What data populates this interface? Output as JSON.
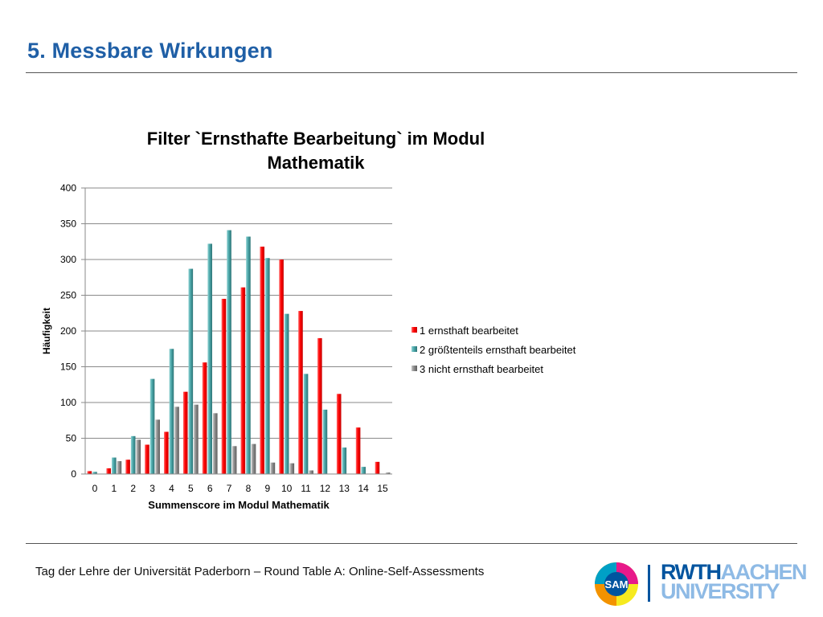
{
  "slide": {
    "title": "5. Messbare Wirkungen",
    "footer": "Tag der Lehre der Universität Paderborn – Round Table A: Online-Self-Assessments"
  },
  "logos": {
    "sam_text": "SAM",
    "rwth_line1_part1": "RWTH",
    "rwth_line1_part2": "AACHEN",
    "rwth_line2": "UNIVERSITY",
    "rwth_color": "#00549f",
    "rwth_light_color": "#8ebae5"
  },
  "chart_data": {
    "type": "bar",
    "title": "Filter `Ernsthafte Bearbeitung` im Modul Mathematik",
    "title_lines": [
      "Filter `Ernsthafte Bearbeitung` im Modul",
      "Mathematik"
    ],
    "xlabel": "Summenscore im Modul Mathematik",
    "ylabel": "Häufigkeit",
    "ylim": [
      0,
      400
    ],
    "yticks": [
      0,
      50,
      100,
      150,
      200,
      250,
      300,
      350,
      400
    ],
    "grid": true,
    "legend_position": "right",
    "categories": [
      "0",
      "1",
      "2",
      "3",
      "4",
      "5",
      "6",
      "7",
      "8",
      "9",
      "10",
      "11",
      "12",
      "13",
      "14",
      "15"
    ],
    "series": [
      {
        "name": "1 ernsthaft bearbeitet",
        "color": "#ff0000",
        "values": [
          4,
          8,
          20,
          41,
          59,
          115,
          156,
          245,
          261,
          318,
          300,
          228,
          190,
          112,
          65,
          17
        ]
      },
      {
        "name": "2 größtenteils ernsthaft bearbeitet",
        "color": "#4aa6a8",
        "values": [
          3,
          23,
          53,
          133,
          175,
          287,
          322,
          341,
          332,
          302,
          224,
          140,
          90,
          37,
          10,
          0
        ]
      },
      {
        "name": "3 nicht ernsthaft bearbeitet",
        "color": "#8c8c8c",
        "values": [
          0,
          18,
          48,
          76,
          94,
          97,
          85,
          39,
          42,
          16,
          15,
          5,
          0,
          0,
          0,
          2
        ]
      }
    ]
  }
}
